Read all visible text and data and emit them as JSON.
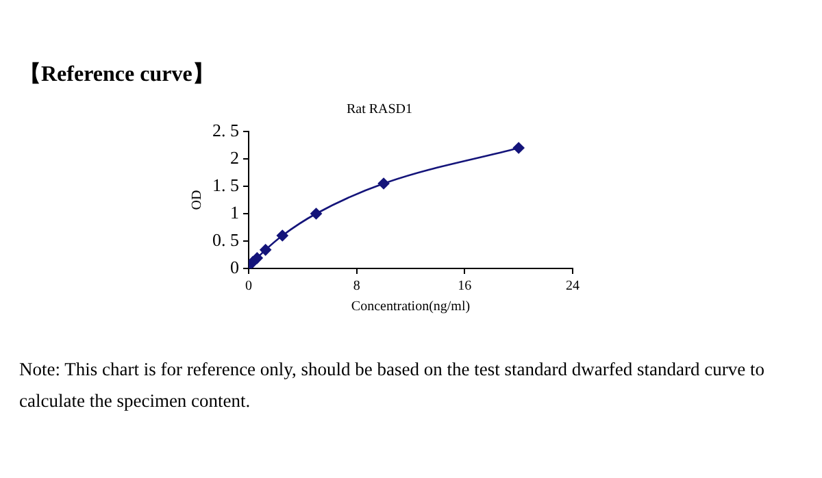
{
  "chart_data": {
    "type": "line",
    "title": "Rat RASD1",
    "xlabel": "Concentration(ng/ml)",
    "ylabel": "OD",
    "x": [
      0,
      0.3125,
      0.625,
      1.25,
      2.5,
      5,
      10,
      20
    ],
    "series": [
      {
        "color": "#14147a",
        "values": [
          0.05,
          0.12,
          0.19,
          0.34,
          0.6,
          1.0,
          1.55,
          2.2
        ]
      }
    ],
    "xlim": [
      0,
      24
    ],
    "xticks": [
      0,
      8,
      16,
      24
    ],
    "ylim": [
      0,
      2.5
    ],
    "yticks": [
      0,
      {
        "value": 0.5,
        "label": "0. 5"
      },
      1,
      {
        "value": 1.5,
        "label": "1. 5"
      },
      2,
      {
        "value": 2.5,
        "label": "2. 5"
      }
    ],
    "grid": false,
    "legend": false,
    "marker": "diamond",
    "line_style": "solid",
    "annotations": [
      "【Reference curve】",
      "Note: This chart is for reference only, should be based on the test standard dwarfed standard curve to calculate the specimen content."
    ]
  }
}
